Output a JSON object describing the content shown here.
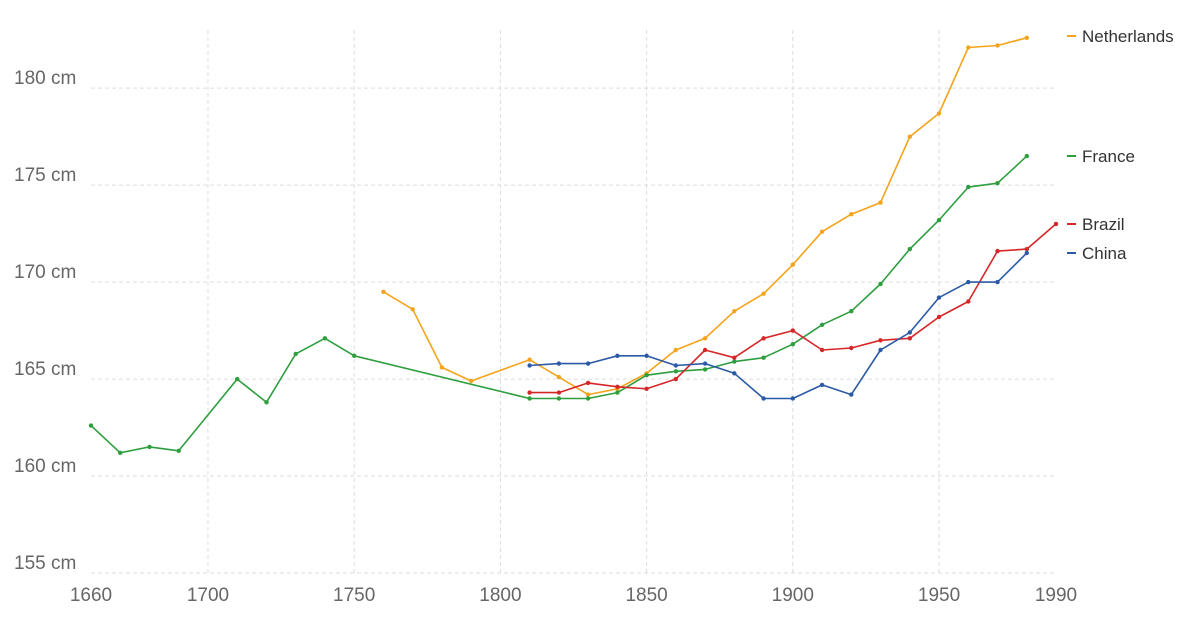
{
  "chart_data": {
    "type": "line",
    "title": "",
    "xlabel": "",
    "ylabel": "",
    "xlim": [
      1660,
      1990
    ],
    "ylim": [
      155,
      183
    ],
    "grid": true,
    "legend_position": "right, labels at line ends",
    "x_ticks": [
      {
        "value": 1660,
        "label": "1660"
      },
      {
        "value": 1700,
        "label": "1700"
      },
      {
        "value": 1750,
        "label": "1750"
      },
      {
        "value": 1800,
        "label": "1800"
      },
      {
        "value": 1850,
        "label": "1850"
      },
      {
        "value": 1900,
        "label": "1900"
      },
      {
        "value": 1950,
        "label": "1950"
      },
      {
        "value": 1990,
        "label": "1990"
      }
    ],
    "y_ticks": [
      {
        "value": 155,
        "label": "155 cm"
      },
      {
        "value": 160,
        "label": "160 cm"
      },
      {
        "value": 165,
        "label": "165 cm"
      },
      {
        "value": 170,
        "label": "170 cm"
      },
      {
        "value": 175,
        "label": "175 cm"
      },
      {
        "value": 180,
        "label": "180 cm"
      }
    ],
    "series": [
      {
        "name": "Netherlands",
        "color": "#f4a41c",
        "points": [
          [
            1760,
            169.5
          ],
          [
            1770,
            168.6
          ],
          [
            1780,
            165.6
          ],
          [
            1790,
            164.9
          ],
          [
            1810,
            166.0
          ],
          [
            1820,
            165.1
          ],
          [
            1830,
            164.2
          ],
          [
            1840,
            164.5
          ],
          [
            1850,
            165.3
          ],
          [
            1860,
            166.5
          ],
          [
            1870,
            167.1
          ],
          [
            1880,
            168.5
          ],
          [
            1890,
            169.4
          ],
          [
            1900,
            170.9
          ],
          [
            1910,
            172.6
          ],
          [
            1920,
            173.5
          ],
          [
            1930,
            174.1
          ],
          [
            1940,
            177.5
          ],
          [
            1950,
            178.7
          ],
          [
            1960,
            182.1
          ],
          [
            1970,
            182.2
          ],
          [
            1980,
            182.6
          ]
        ]
      },
      {
        "name": "France",
        "color": "#2e9e3e",
        "points": [
          [
            1660,
            162.6
          ],
          [
            1670,
            161.2
          ],
          [
            1680,
            161.5
          ],
          [
            1690,
            161.3
          ],
          [
            1710,
            165.0
          ],
          [
            1720,
            163.8
          ],
          [
            1730,
            166.3
          ],
          [
            1740,
            167.1
          ],
          [
            1750,
            166.2
          ],
          [
            1810,
            164.0
          ],
          [
            1820,
            164.0
          ],
          [
            1830,
            164.0
          ],
          [
            1840,
            164.3
          ],
          [
            1850,
            165.2
          ],
          [
            1860,
            165.4
          ],
          [
            1870,
            165.5
          ],
          [
            1880,
            165.9
          ],
          [
            1890,
            166.1
          ],
          [
            1900,
            166.8
          ],
          [
            1910,
            167.8
          ],
          [
            1920,
            168.5
          ],
          [
            1930,
            169.9
          ],
          [
            1940,
            171.7
          ],
          [
            1950,
            173.2
          ],
          [
            1960,
            174.9
          ],
          [
            1970,
            175.1
          ],
          [
            1980,
            176.5
          ]
        ]
      },
      {
        "name": "Brazil",
        "color": "#d62728",
        "points": [
          [
            1810,
            164.3
          ],
          [
            1820,
            164.3
          ],
          [
            1830,
            164.8
          ],
          [
            1840,
            164.6
          ],
          [
            1850,
            164.5
          ],
          [
            1860,
            165.0
          ],
          [
            1870,
            166.5
          ],
          [
            1880,
            166.1
          ],
          [
            1890,
            167.1
          ],
          [
            1900,
            167.5
          ],
          [
            1910,
            166.5
          ],
          [
            1920,
            166.6
          ],
          [
            1930,
            167.0
          ],
          [
            1940,
            167.1
          ],
          [
            1950,
            168.2
          ],
          [
            1960,
            169.0
          ],
          [
            1970,
            171.6
          ],
          [
            1980,
            171.7
          ],
          [
            1990,
            173.0
          ]
        ]
      },
      {
        "name": "China",
        "color": "#2b5aa6",
        "points": [
          [
            1810,
            165.7
          ],
          [
            1820,
            165.8
          ],
          [
            1830,
            165.8
          ],
          [
            1840,
            166.2
          ],
          [
            1850,
            166.2
          ],
          [
            1860,
            165.7
          ],
          [
            1870,
            165.8
          ],
          [
            1880,
            165.3
          ],
          [
            1890,
            164.0
          ],
          [
            1900,
            164.0
          ],
          [
            1910,
            164.7
          ],
          [
            1920,
            164.2
          ],
          [
            1930,
            166.5
          ],
          [
            1940,
            167.4
          ],
          [
            1950,
            169.2
          ],
          [
            1960,
            170.0
          ],
          [
            1970,
            170.0
          ],
          [
            1980,
            171.5
          ]
        ]
      }
    ]
  }
}
